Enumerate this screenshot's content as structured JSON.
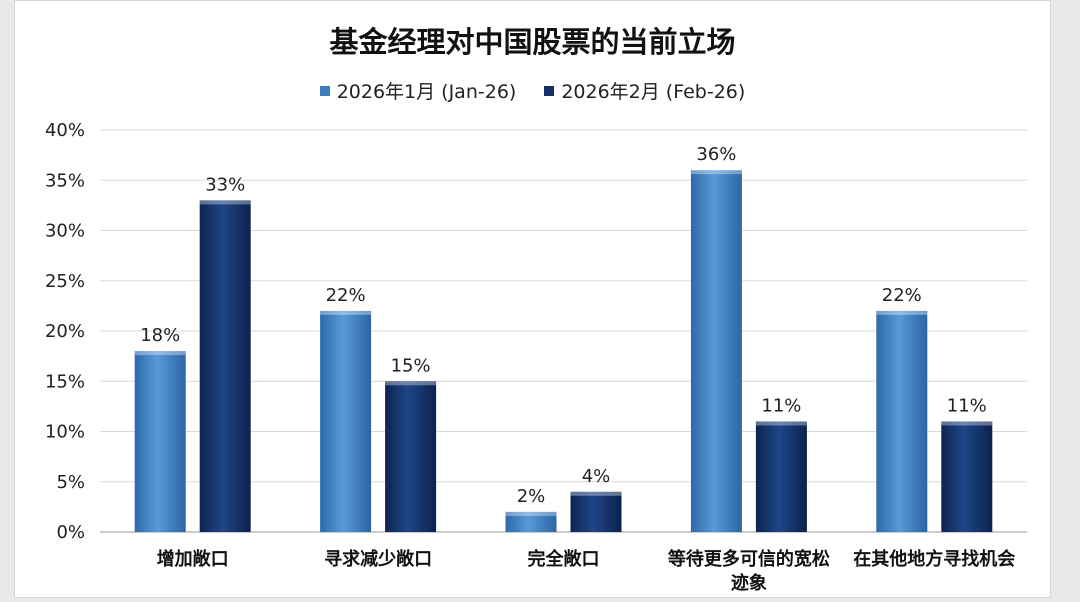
{
  "chart_data": {
    "type": "bar",
    "title": "基金经理对中国股票的当前立场",
    "categories": [
      [
        "增加敞口"
      ],
      [
        "寻求减少敞口"
      ],
      [
        "完全敞口"
      ],
      [
        "等待更多可信的宽松",
        "迹象"
      ],
      [
        "在其他地方寻找机会"
      ]
    ],
    "series": [
      {
        "name": "2026年1月 (Jan-26)",
        "values": [
          18,
          22,
          2,
          36,
          22
        ],
        "color": "#3f7dbf"
      },
      {
        "name": "2026年2月 (Feb-26)",
        "values": [
          33,
          15,
          4,
          11,
          11
        ],
        "color": "#132f66"
      }
    ],
    "y_ticks": [
      "0%",
      "5%",
      "10%",
      "15%",
      "20%",
      "25%",
      "30%",
      "35%",
      "40%"
    ],
    "ylim": [
      0,
      40
    ],
    "value_suffix": "%",
    "legend_position": "top-center",
    "grid": true
  }
}
